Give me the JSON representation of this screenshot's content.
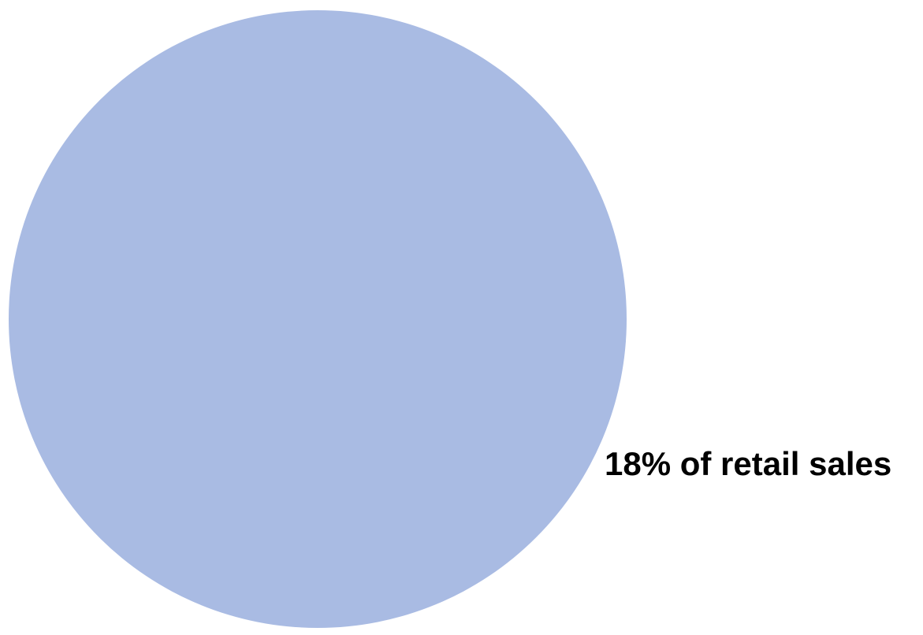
{
  "chart_data": {
    "type": "pie",
    "categories": [
      ""
    ],
    "values": [
      100
    ],
    "colors": [
      "#a9bbe3"
    ],
    "annotations": [
      "18% of retail sales"
    ],
    "legend": "none"
  }
}
